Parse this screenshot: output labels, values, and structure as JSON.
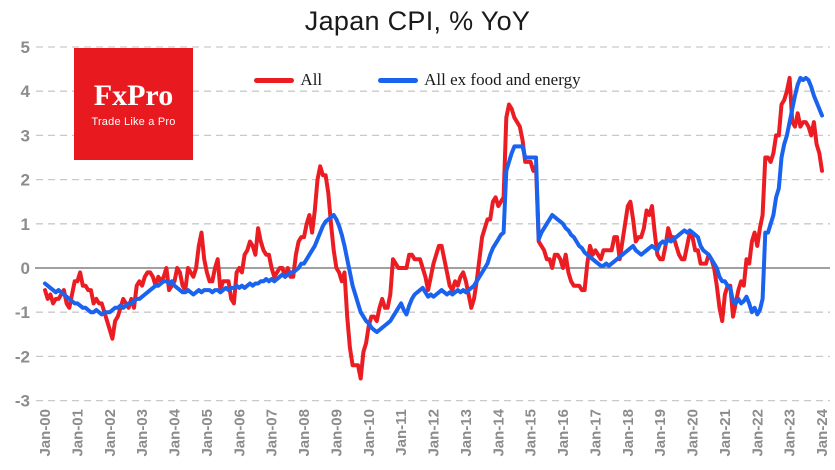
{
  "header": {
    "title": "Japan CPI, % YoY"
  },
  "logo": {
    "name": "FxPro",
    "tagline": "Trade Like a Pro",
    "bg_color": "#e8191f",
    "text_color": "#ffffff"
  },
  "legend": [
    {
      "label": "All",
      "color": "#ec1c23"
    },
    {
      "label": "All ex food and energy",
      "color": "#1a63ee"
    }
  ],
  "chart_data": {
    "type": "line",
    "title": "Japan CPI, % YoY",
    "x_frequency": "monthly",
    "x_start": "Jan-2000",
    "x_end": "Jan-2024",
    "x_tick_labels": [
      "Jan-00",
      "Jan-01",
      "Jan-02",
      "Jan-03",
      "Jan-04",
      "Jan-05",
      "Jan-06",
      "Jan-07",
      "Jan-08",
      "Jan-09",
      "Jan-10",
      "Jan-11",
      "Jan-12",
      "Jan-13",
      "Jan-14",
      "Jan-15",
      "Jan-16",
      "Jan-17",
      "Jan-18",
      "Jan-19",
      "Jan-20",
      "Jan-21",
      "Jan-22",
      "Jan-23",
      "Jan-24"
    ],
    "ylim": [
      -3,
      5
    ],
    "y_ticks": [
      5,
      4,
      3,
      2,
      1,
      0,
      -1,
      -2,
      -3
    ],
    "grid": "horizontal-dashed",
    "zero_line": true,
    "legend_position": "top-center",
    "axis": {
      "label_color": "#8c8c8c",
      "grid_color": "#c9c9c9",
      "zero_line_color": "#808080"
    },
    "series": [
      {
        "name": "All",
        "color": "#ec1c23",
        "values": [
          -0.5,
          -0.7,
          -0.6,
          -0.8,
          -0.7,
          -0.7,
          -0.6,
          -0.5,
          -0.8,
          -0.9,
          -0.6,
          -0.3,
          -0.3,
          -0.1,
          -0.4,
          -0.4,
          -0.5,
          -0.5,
          -0.8,
          -0.7,
          -0.8,
          -0.8,
          -1.0,
          -1.2,
          -1.4,
          -1.6,
          -1.2,
          -1.1,
          -0.9,
          -0.7,
          -0.8,
          -0.9,
          -0.7,
          -0.9,
          -0.4,
          -0.3,
          -0.4,
          -0.2,
          -0.1,
          -0.1,
          -0.2,
          -0.4,
          -0.2,
          -0.3,
          -0.2,
          0.0,
          -0.5,
          -0.4,
          -0.3,
          0.0,
          -0.1,
          -0.4,
          -0.5,
          0.0,
          -0.1,
          -0.2,
          0.0,
          0.5,
          0.8,
          0.2,
          -0.1,
          -0.3,
          -0.3,
          0.0,
          0.2,
          -0.5,
          -0.3,
          -0.3,
          -0.3,
          -0.7,
          -0.8,
          -0.1,
          0.0,
          -0.1,
          0.3,
          0.4,
          0.6,
          0.5,
          0.3,
          0.9,
          0.6,
          0.4,
          0.3,
          0.3,
          0.0,
          -0.2,
          -0.1,
          0.0,
          0.0,
          -0.2,
          0.0,
          -0.2,
          -0.2,
          0.3,
          0.6,
          0.7,
          0.7,
          1.0,
          1.2,
          0.8,
          1.3,
          2.0,
          2.3,
          2.1,
          2.1,
          1.7,
          1.0,
          0.4,
          0.0,
          -0.1,
          -0.3,
          -0.1,
          -1.1,
          -1.8,
          -2.2,
          -2.2,
          -2.2,
          -2.5,
          -1.9,
          -1.7,
          -1.3,
          -1.1,
          -1.1,
          -1.2,
          -0.9,
          -0.7,
          -0.9,
          -0.9,
          -0.6,
          0.2,
          0.1,
          0.0,
          0.0,
          0.0,
          0.0,
          0.3,
          0.3,
          0.2,
          0.2,
          0.2,
          0.0,
          -0.2,
          -0.5,
          -0.2,
          0.1,
          0.3,
          0.5,
          0.5,
          0.2,
          -0.1,
          -0.4,
          -0.5,
          -0.3,
          -0.4,
          -0.2,
          -0.1,
          -0.3,
          -0.6,
          -0.9,
          -0.7,
          -0.3,
          0.2,
          0.7,
          0.9,
          1.1,
          1.1,
          1.5,
          1.6,
          1.4,
          1.5,
          1.6,
          3.4,
          3.7,
          3.6,
          3.4,
          3.3,
          3.2,
          2.9,
          2.4,
          2.4,
          2.4,
          2.2,
          2.3,
          0.6,
          0.5,
          0.4,
          0.2,
          0.2,
          0.0,
          0.3,
          0.3,
          0.2,
          0.0,
          0.3,
          -0.1,
          -0.3,
          -0.4,
          -0.4,
          -0.4,
          -0.5,
          -0.5,
          0.1,
          0.5,
          0.3,
          0.4,
          0.3,
          0.2,
          0.4,
          0.4,
          0.4,
          0.4,
          0.7,
          0.7,
          0.2,
          0.6,
          1.0,
          1.4,
          1.5,
          1.1,
          0.6,
          0.7,
          0.7,
          0.9,
          1.3,
          1.2,
          1.4,
          0.8,
          0.3,
          0.2,
          0.2,
          0.5,
          0.9,
          0.7,
          0.7,
          0.5,
          0.3,
          0.2,
          0.2,
          0.5,
          0.8,
          0.7,
          0.4,
          0.4,
          0.1,
          0.1,
          0.1,
          0.3,
          0.2,
          0.0,
          -0.4,
          -0.9,
          -1.2,
          -0.6,
          -0.4,
          -0.4,
          -1.1,
          -0.8,
          -0.5,
          -0.3,
          -0.4,
          0.2,
          0.1,
          0.6,
          0.8,
          0.5,
          0.9,
          1.2,
          2.5,
          2.5,
          2.4,
          2.6,
          3.0,
          3.0,
          3.7,
          3.8,
          4.0,
          4.3,
          3.3,
          3.2,
          3.5,
          3.2,
          3.3,
          3.3,
          3.2,
          3.0,
          3.3,
          2.8,
          2.6,
          2.2
        ]
      },
      {
        "name": "All ex food and energy",
        "color": "#1a63ee",
        "values": [
          -0.35,
          -0.4,
          -0.45,
          -0.5,
          -0.55,
          -0.5,
          -0.55,
          -0.6,
          -0.65,
          -0.7,
          -0.75,
          -0.8,
          -0.8,
          -0.85,
          -0.9,
          -0.9,
          -0.95,
          -1.0,
          -1.0,
          -0.95,
          -1.0,
          -1.05,
          -1.0,
          -1.0,
          -1.0,
          -0.95,
          -0.9,
          -0.9,
          -0.85,
          -0.9,
          -0.85,
          -0.8,
          -0.8,
          -0.75,
          -0.7,
          -0.7,
          -0.65,
          -0.6,
          -0.55,
          -0.5,
          -0.45,
          -0.4,
          -0.4,
          -0.35,
          -0.3,
          -0.3,
          -0.35,
          -0.3,
          -0.4,
          -0.45,
          -0.5,
          -0.55,
          -0.55,
          -0.5,
          -0.55,
          -0.6,
          -0.55,
          -0.5,
          -0.55,
          -0.5,
          -0.5,
          -0.5,
          -0.55,
          -0.5,
          -0.5,
          -0.55,
          -0.5,
          -0.45,
          -0.5,
          -0.45,
          -0.45,
          -0.4,
          -0.45,
          -0.4,
          -0.45,
          -0.4,
          -0.35,
          -0.4,
          -0.35,
          -0.35,
          -0.3,
          -0.3,
          -0.25,
          -0.3,
          -0.25,
          -0.3,
          -0.25,
          -0.2,
          -0.15,
          -0.2,
          -0.15,
          -0.1,
          -0.1,
          -0.05,
          0.0,
          0.1,
          0.1,
          0.2,
          0.3,
          0.4,
          0.5,
          0.65,
          0.8,
          0.95,
          1.05,
          1.1,
          1.15,
          1.2,
          1.1,
          0.95,
          0.75,
          0.5,
          0.2,
          -0.1,
          -0.4,
          -0.6,
          -0.8,
          -1.0,
          -1.1,
          -1.2,
          -1.25,
          -1.35,
          -1.4,
          -1.45,
          -1.4,
          -1.35,
          -1.3,
          -1.25,
          -1.2,
          -1.1,
          -1.0,
          -0.9,
          -0.8,
          -0.95,
          -1.05,
          -0.85,
          -0.7,
          -0.6,
          -0.55,
          -0.5,
          -0.45,
          -0.55,
          -0.65,
          -0.6,
          -0.65,
          -0.6,
          -0.55,
          -0.5,
          -0.55,
          -0.6,
          -0.55,
          -0.6,
          -0.55,
          -0.5,
          -0.55,
          -0.5,
          -0.55,
          -0.5,
          -0.45,
          -0.4,
          -0.3,
          -0.2,
          -0.1,
          0.0,
          0.1,
          0.3,
          0.45,
          0.55,
          0.65,
          0.75,
          0.8,
          2.2,
          2.4,
          2.6,
          2.75,
          2.75,
          2.75,
          2.75,
          2.5,
          2.5,
          2.5,
          2.5,
          2.5,
          0.65,
          0.8,
          0.9,
          1.0,
          1.1,
          1.2,
          1.15,
          1.1,
          1.05,
          1.0,
          0.9,
          0.85,
          0.75,
          0.7,
          0.6,
          0.5,
          0.45,
          0.35,
          0.3,
          0.25,
          0.2,
          0.15,
          0.1,
          0.05,
          0.05,
          0.1,
          0.05,
          0.1,
          0.15,
          0.2,
          0.25,
          0.3,
          0.35,
          0.4,
          0.45,
          0.5,
          0.4,
          0.35,
          0.3,
          0.35,
          0.4,
          0.45,
          0.5,
          0.45,
          0.4,
          0.55,
          0.6,
          0.55,
          0.65,
          0.6,
          0.65,
          0.7,
          0.75,
          0.8,
          0.85,
          0.8,
          0.85,
          0.8,
          0.75,
          0.7,
          0.5,
          0.4,
          0.35,
          0.3,
          0.2,
          0.1,
          0.0,
          -0.2,
          -0.3,
          -0.3,
          -0.4,
          -0.45,
          -0.75,
          -0.8,
          -0.7,
          -0.8,
          -0.75,
          -0.65,
          -0.8,
          -1.0,
          -0.9,
          -1.05,
          -0.95,
          -0.7,
          0.8,
          0.8,
          1.0,
          1.2,
          1.6,
          1.8,
          2.5,
          2.8,
          3.0,
          3.3,
          3.6,
          3.9,
          4.15,
          4.3,
          4.25,
          4.3,
          4.25,
          4.1,
          3.9,
          3.75,
          3.6,
          3.45
        ]
      }
    ]
  }
}
